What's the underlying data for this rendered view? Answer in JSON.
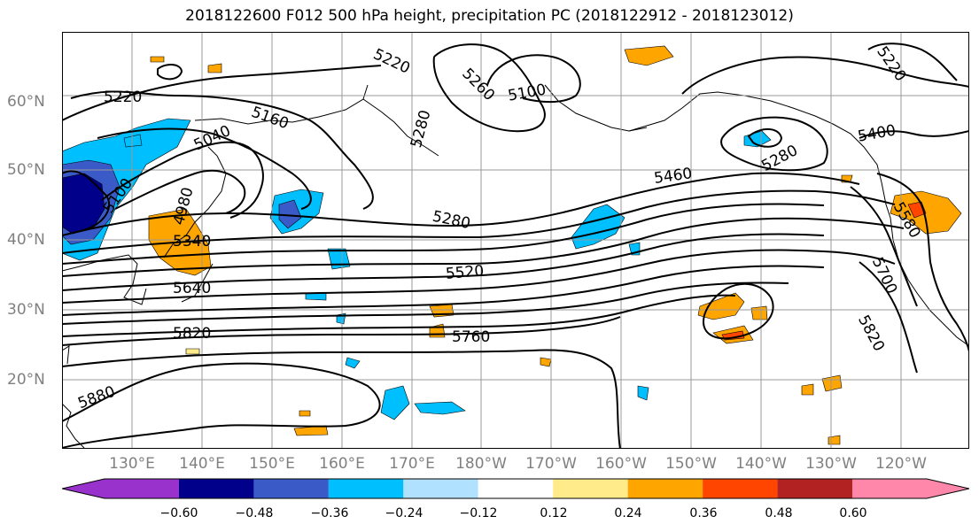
{
  "title": "2018122600 F012 500 hPa height, precipitation PC (2018122912 - 2018123012)",
  "lat_labels": [
    "60°N",
    "50°N",
    "40°N",
    "30°N",
    "20°N"
  ],
  "lon_labels": [
    "130°E",
    "140°E",
    "150°E",
    "160°E",
    "170°E",
    "180°W",
    "170°W",
    "160°W",
    "150°W",
    "140°W",
    "130°W",
    "120°W"
  ],
  "contour_labels": [
    "5220",
    "5160",
    "5040",
    "5100",
    "4980",
    "5220",
    "5260",
    "5100",
    "5280",
    "5280",
    "5340",
    "5640",
    "5820",
    "5520",
    "5760",
    "5880",
    "5460",
    "5280",
    "5400",
    "5220",
    "5580",
    "5700",
    "5820"
  ],
  "colorbar": {
    "ticks": [
      "−0.60",
      "−0.48",
      "−0.36",
      "−0.24",
      "−0.12",
      "0.12",
      "0.24",
      "0.36",
      "0.48",
      "0.60"
    ],
    "colors": [
      "#9932CC",
      "#00008B",
      "#3A5BC7",
      "#00BFFF",
      "#B0E2FF",
      "#FFFFFF",
      "#FFEB8A",
      "#FFA500",
      "#FF4500",
      "#B22222",
      "#FF88AA"
    ]
  }
}
